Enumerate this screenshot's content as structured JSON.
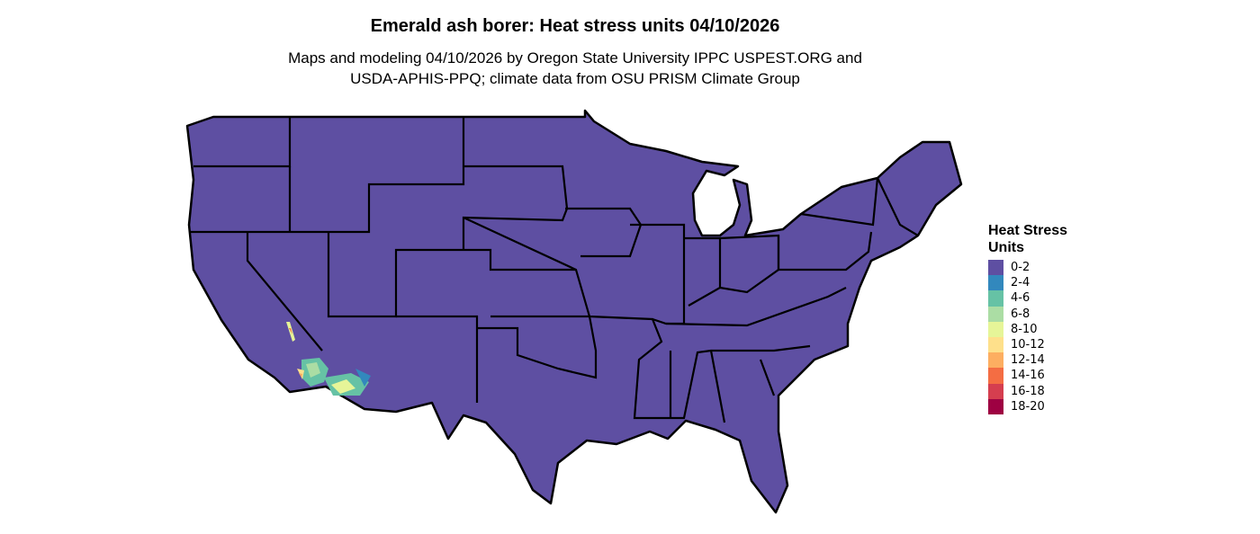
{
  "title": "Emerald ash borer: Heat stress units 04/10/2026",
  "subtitle_line1": "Maps and modeling 04/10/2026 by Oregon State University IPPC USPEST.ORG and",
  "subtitle_line2": "USDA-APHIS-PPQ; climate data from OSU PRISM Climate Group",
  "map": {
    "region": "Contiguous United States",
    "dominant_class": "0-2",
    "elevated_areas": "Southern California deserts and southwestern Arizona (2-14 classes)"
  },
  "legend": {
    "title": "Heat Stress Units",
    "items": [
      {
        "label": "0-2",
        "color": "#5E4FA2"
      },
      {
        "label": "2-4",
        "color": "#3288BD"
      },
      {
        "label": "4-6",
        "color": "#66C2A5"
      },
      {
        "label": "6-8",
        "color": "#ABDDA4"
      },
      {
        "label": "8-10",
        "color": "#E6F598"
      },
      {
        "label": "10-12",
        "color": "#FEE08B"
      },
      {
        "label": "12-14",
        "color": "#FDAE61"
      },
      {
        "label": "14-16",
        "color": "#F46D43"
      },
      {
        "label": "16-18",
        "color": "#D53E4F"
      },
      {
        "label": "18-20",
        "color": "#9E0142"
      }
    ]
  }
}
